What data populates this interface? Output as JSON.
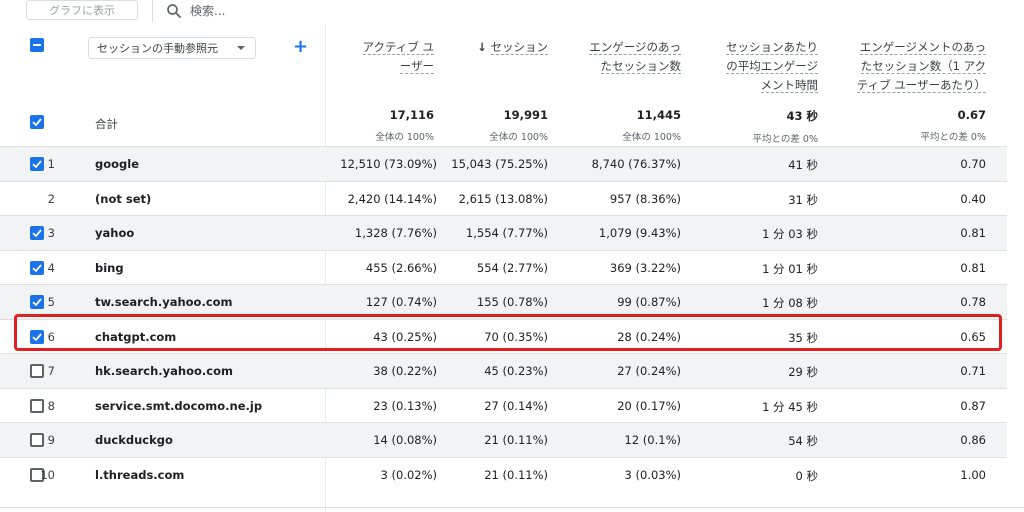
{
  "toolbar": {
    "graph_button": "グラフに表示",
    "search_placeholder": "検索..."
  },
  "header": {
    "dimension_select": "セッションの手動参照元",
    "add_dimension": "+",
    "columns": [
      {
        "line1": "アクティブ ユ",
        "line2": "ーザー",
        "line3": ""
      },
      {
        "arrow": "↓",
        "line1": "セッション",
        "line2": "",
        "line3": ""
      },
      {
        "line1": "エンゲージのあっ",
        "line2": "たセッション数",
        "line3": ""
      },
      {
        "line1": "セッションあたり",
        "line2": "の平均エンゲージ",
        "line3": "メント時間"
      },
      {
        "line1": "エンゲージメントのあっ",
        "line2": "たセッション数（1 アク",
        "line3": "ティブ ユーザーあたり）"
      }
    ]
  },
  "totals": {
    "label": "合計",
    "values": [
      "17,116",
      "19,991",
      "11,445",
      "43 秒",
      "0.67"
    ],
    "subs": [
      "全体の 100%",
      "全体の 100%",
      "全体の 100%",
      "平均との差 0%",
      "平均との差 0%"
    ]
  },
  "rows": [
    {
      "idx": "1",
      "name": "google",
      "checked": true,
      "cells": [
        "12,510 (73.09%)",
        "15,043 (75.25%)",
        "8,740 (76.37%)",
        "41 秒",
        "0.70"
      ]
    },
    {
      "idx": "2",
      "name": "(not set)",
      "checked": null,
      "cells": [
        "2,420 (14.14%)",
        "2,615 (13.08%)",
        "957 (8.36%)",
        "31 秒",
        "0.40"
      ]
    },
    {
      "idx": "3",
      "name": "yahoo",
      "checked": true,
      "cells": [
        "1,328 (7.76%)",
        "1,554 (7.77%)",
        "1,079 (9.43%)",
        "1 分 03 秒",
        "0.81"
      ]
    },
    {
      "idx": "4",
      "name": "bing",
      "checked": true,
      "cells": [
        "455 (2.66%)",
        "554 (2.77%)",
        "369 (3.22%)",
        "1 分 01 秒",
        "0.81"
      ]
    },
    {
      "idx": "5",
      "name": "tw.search.yahoo.com",
      "checked": true,
      "cells": [
        "127 (0.74%)",
        "155 (0.78%)",
        "99 (0.87%)",
        "1 分 08 秒",
        "0.78"
      ]
    },
    {
      "idx": "6",
      "name": "chatgpt.com",
      "checked": true,
      "cells": [
        "43 (0.25%)",
        "70 (0.35%)",
        "28 (0.24%)",
        "35 秒",
        "0.65"
      ]
    },
    {
      "idx": "7",
      "name": "hk.search.yahoo.com",
      "checked": false,
      "cells": [
        "38 (0.22%)",
        "45 (0.23%)",
        "27 (0.24%)",
        "29 秒",
        "0.71"
      ]
    },
    {
      "idx": "8",
      "name": "service.smt.docomo.ne.jp",
      "checked": false,
      "cells": [
        "23 (0.13%)",
        "27 (0.14%)",
        "20 (0.17%)",
        "1 分 45 秒",
        "0.87"
      ]
    },
    {
      "idx": "9",
      "name": "duckduckgo",
      "checked": false,
      "cells": [
        "14 (0.08%)",
        "21 (0.11%)",
        "12 (0.1%)",
        "54 秒",
        "0.86"
      ]
    },
    {
      "idx": "10",
      "name": "l.threads.com",
      "checked": false,
      "cells": [
        "3 (0.02%)",
        "21 (0.11%)",
        "3 (0.03%)",
        "0 秒",
        "1.00"
      ]
    }
  ],
  "colors": {
    "accent": "#1a73e8",
    "highlight": "#e02020"
  }
}
